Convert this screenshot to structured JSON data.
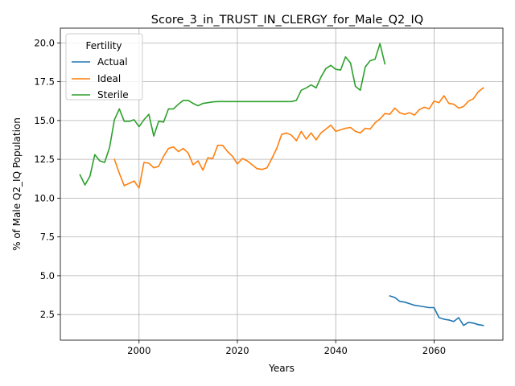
{
  "chart_data": {
    "type": "line",
    "title": "Score_3_in_TRUST_IN_CLERGY_for_Male_Q2_IQ",
    "xlabel": "Years",
    "ylabel": "% of Male Q2_IQ Population",
    "xlim": [
      1984,
      2074
    ],
    "ylim": [
      0.85,
      20.95
    ],
    "x_ticks": [
      2000,
      2020,
      2040,
      2060
    ],
    "y_ticks": [
      2.5,
      5.0,
      7.5,
      10.0,
      12.5,
      15.0,
      17.5,
      20.0
    ],
    "x_tick_labels": [
      "2000",
      "2020",
      "2040",
      "2060"
    ],
    "y_tick_labels": [
      "2.5",
      "5.0",
      "7.5",
      "10.0",
      "12.5",
      "15.0",
      "17.5",
      "20.0"
    ],
    "grid": true,
    "legend": {
      "title": "Fertility",
      "position": "upper-left"
    },
    "series": [
      {
        "name": "Actual",
        "color": "#1f77b4",
        "x": [
          2051,
          2052,
          2053,
          2054,
          2055,
          2056,
          2057,
          2058,
          2059,
          2060,
          2061,
          2062,
          2063,
          2064,
          2065,
          2066,
          2067,
          2068,
          2069,
          2070
        ],
        "y": [
          3.7,
          3.6,
          3.35,
          3.3,
          3.2,
          3.1,
          3.05,
          3.0,
          2.95,
          2.95,
          2.3,
          2.2,
          2.15,
          2.05,
          2.3,
          1.8,
          2.0,
          1.95,
          1.85,
          1.8
        ]
      },
      {
        "name": "Ideal",
        "color": "#ff7f0e",
        "x": [
          1995,
          1996,
          1997,
          1998,
          1999,
          2000,
          2001,
          2002,
          2003,
          2004,
          2005,
          2006,
          2007,
          2008,
          2009,
          2010,
          2011,
          2012,
          2013,
          2014,
          2015,
          2016,
          2017,
          2018,
          2019,
          2020,
          2021,
          2022,
          2023,
          2024,
          2025,
          2026,
          2027,
          2028,
          2029,
          2030,
          2031,
          2032,
          2033,
          2034,
          2035,
          2036,
          2037,
          2038,
          2039,
          2040,
          2041,
          2042,
          2043,
          2044,
          2045,
          2046,
          2047,
          2048,
          2049,
          2050,
          2051,
          2052,
          2053,
          2054,
          2055,
          2056,
          2057,
          2058,
          2059,
          2060,
          2061,
          2062,
          2063,
          2064,
          2065,
          2066,
          2067,
          2068,
          2069,
          2070
        ],
        "y": [
          12.5,
          11.6,
          10.8,
          10.95,
          11.1,
          10.65,
          12.3,
          12.25,
          11.95,
          12.05,
          12.7,
          13.2,
          13.3,
          13.0,
          13.2,
          12.9,
          12.15,
          12.4,
          11.8,
          12.6,
          12.55,
          13.4,
          13.4,
          13.0,
          12.7,
          12.2,
          12.55,
          12.4,
          12.15,
          11.9,
          11.85,
          11.95,
          12.55,
          13.2,
          14.1,
          14.2,
          14.05,
          13.7,
          14.3,
          13.8,
          14.2,
          13.75,
          14.2,
          14.45,
          14.7,
          14.3,
          14.4,
          14.5,
          14.55,
          14.3,
          14.2,
          14.5,
          14.45,
          14.85,
          15.1,
          15.45,
          15.4,
          15.8,
          15.5,
          15.4,
          15.5,
          15.35,
          15.7,
          15.85,
          15.75,
          16.25,
          16.15,
          16.6,
          16.1,
          16.05,
          15.8,
          15.9,
          16.25,
          16.4,
          16.85,
          17.1
        ]
      },
      {
        "name": "Sterile",
        "color": "#2ca02c",
        "x": [
          1988,
          1989,
          1990,
          1991,
          1992,
          1993,
          1994,
          1995,
          1996,
          1997,
          1998,
          1999,
          2000,
          2001,
          2002,
          2003,
          2004,
          2005,
          2006,
          2007,
          2008,
          2009,
          2010,
          2011,
          2012,
          2013,
          2014,
          2015,
          2016,
          2017,
          2018,
          2019,
          2020,
          2021,
          2022,
          2023,
          2024,
          2025,
          2026,
          2027,
          2028,
          2029,
          2030,
          2031,
          2032,
          2033,
          2034,
          2035,
          2036,
          2037,
          2038,
          2039,
          2040,
          2041,
          2042,
          2043,
          2044,
          2045,
          2046,
          2047,
          2048,
          2049,
          2050
        ],
        "y": [
          11.5,
          10.85,
          11.4,
          12.8,
          12.4,
          12.3,
          13.25,
          15.05,
          15.75,
          14.95,
          14.95,
          15.05,
          14.6,
          15.05,
          15.4,
          14.0,
          14.95,
          14.9,
          15.75,
          15.75,
          16.05,
          16.3,
          16.3,
          16.1,
          15.95,
          16.1,
          16.15,
          16.2,
          16.22,
          16.22,
          16.22,
          16.22,
          16.22,
          16.22,
          16.22,
          16.22,
          16.22,
          16.22,
          16.22,
          16.22,
          16.22,
          16.22,
          16.22,
          16.22,
          16.3,
          16.95,
          17.1,
          17.3,
          17.1,
          17.8,
          18.35,
          18.55,
          18.3,
          18.25,
          19.1,
          18.7,
          17.2,
          16.95,
          18.45,
          18.85,
          18.95,
          19.95,
          18.65
        ]
      }
    ]
  }
}
